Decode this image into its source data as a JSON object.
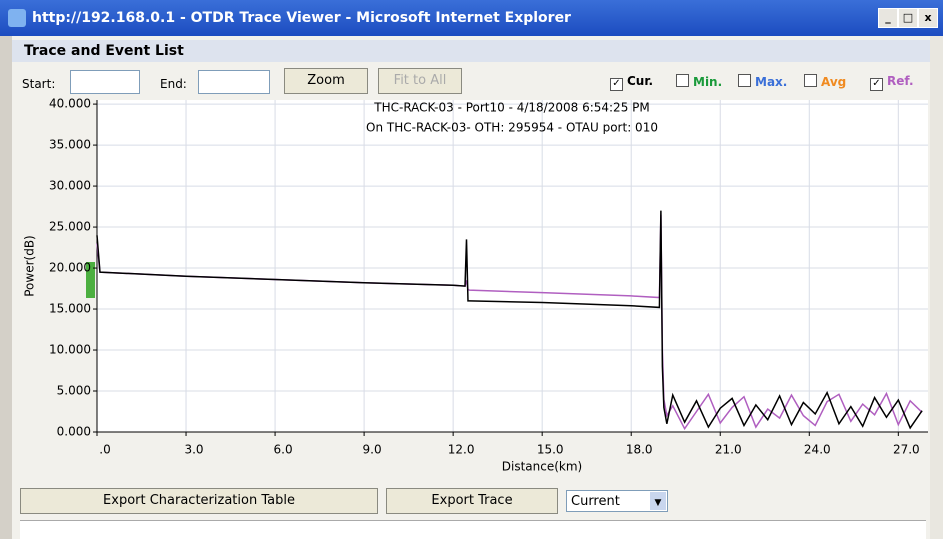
{
  "window": {
    "title": "http://192.168.0.1 - OTDR Trace Viewer - Microsoft Internet Explorer"
  },
  "panel": {
    "title": "Trace and Event List"
  },
  "toolbar": {
    "start_label": "Start:",
    "end_label": "End:",
    "zoom": "Zoom",
    "fit": "Fit to All",
    "min": "Min.",
    "max": "Max.",
    "avg": "Avg"
  },
  "footer": {
    "export_table": "Export Characterization Table",
    "export_trace": "Export Trace",
    "select": "Current"
  },
  "chart_data": {
    "type": "line",
    "title": "THC-RACK-03 - Port10 - 4/18/2008 6:54:25 PM",
    "subtitle": "On THC-RACK-03- OTH: 295954 - OTAU port: 010",
    "x_label": "Distance(km)",
    "y_label": "Power(dB)",
    "x": [
      0,
      0.1,
      3,
      6,
      9,
      12,
      12.4,
      12.45,
      12.5,
      12.55,
      15,
      18,
      18.95,
      19.0,
      19.05,
      19.1,
      19.2,
      19.4,
      19.8,
      20.2,
      20.6,
      21.0,
      21.4,
      21.8,
      22.2,
      22.6,
      23.0,
      23.4,
      23.8,
      24.2,
      24.6,
      25.0,
      25.4,
      25.8,
      26.2,
      26.6,
      27.0,
      27.4,
      27.8
    ],
    "series": [
      {
        "name": "Cur.",
        "color": "#000000",
        "values": [
          24,
          19.5,
          19.0,
          18.6,
          18.2,
          17.9,
          17.8,
          23.5,
          16.0,
          16.0,
          15.8,
          15.4,
          15.2,
          27.0,
          8.0,
          3.0,
          1.0,
          4.5,
          1.2,
          3.8,
          0.6,
          2.9,
          4.1,
          0.8,
          3.3,
          1.5,
          4.4,
          0.9,
          3.6,
          2.2,
          4.8,
          1.0,
          3.1,
          0.7,
          4.2,
          1.8,
          3.9,
          0.5,
          2.6
        ]
      },
      {
        "name": "Ref.",
        "color": "#b05fc0",
        "values": [
          23,
          19.5,
          19.0,
          18.6,
          18.2,
          17.9,
          17.8,
          18.5,
          17.4,
          17.3,
          17.0,
          16.6,
          16.4,
          26.5,
          10,
          4,
          2,
          3.2,
          0.4,
          2.5,
          4.6,
          1.1,
          3.0,
          4.3,
          0.6,
          2.8,
          1.7,
          4.5,
          2.0,
          0.8,
          3.7,
          4.6,
          1.3,
          3.4,
          2.1,
          4.7,
          0.9,
          3.8,
          2.4
        ]
      }
    ],
    "xlim": [
      0,
      28
    ],
    "ylim": [
      0,
      40.5
    ],
    "xticks": [
      {
        "value": 0,
        "label": ".0"
      },
      {
        "value": 3,
        "label": "3.0"
      },
      {
        "value": 6,
        "label": "6.0"
      },
      {
        "value": 9,
        "label": "9.0"
      },
      {
        "value": 12,
        "label": "12.0"
      },
      {
        "value": 15,
        "label": "15.0"
      },
      {
        "value": 18,
        "label": "18.0"
      },
      {
        "value": 21,
        "label": "21.0"
      },
      {
        "value": 24,
        "label": "24.0"
      },
      {
        "value": 27,
        "label": "27.0"
      }
    ],
    "yticks": [
      {
        "value": 0,
        "label": "0.000"
      },
      {
        "value": 5,
        "label": "5.000"
      },
      {
        "value": 10,
        "label": "10.000"
      },
      {
        "value": 15,
        "label": "15.000"
      },
      {
        "value": 20,
        "label": "20.000"
      },
      {
        "value": 25,
        "label": "25.000"
      },
      {
        "value": 30,
        "label": "30.000"
      },
      {
        "value": 35,
        "label": "35.000"
      },
      {
        "value": 40,
        "label": "40.000"
      }
    ],
    "grid": true
  }
}
